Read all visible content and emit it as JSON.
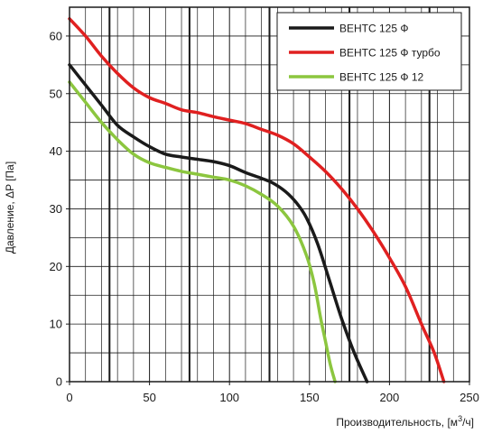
{
  "chart_data": {
    "type": "line",
    "title": "",
    "xlabel": "Производительность, [м 3/ч]",
    "xlabel_main": "Производительность, [м",
    "xlabel_sup": "3",
    "xlabel_end": "/ч]",
    "ylabel": "Давление, ΔP [Па]",
    "xlim": [
      0,
      250
    ],
    "ylim": [
      0,
      65
    ],
    "x_ticks": [
      0,
      50,
      100,
      150,
      200,
      250
    ],
    "y_ticks": [
      0,
      10,
      20,
      30,
      40,
      50,
      60
    ],
    "grid": true,
    "legend_position": "top-right",
    "series": [
      {
        "name": "ВЕНТС 125 Ф",
        "color": "#1a1a1a",
        "x": [
          0,
          10,
          20,
          30,
          40,
          50,
          60,
          70,
          80,
          90,
          100,
          110,
          120,
          127,
          135,
          142,
          148,
          155,
          162,
          170,
          178,
          186
        ],
        "y": [
          55,
          51.5,
          48,
          44.5,
          42.5,
          40.8,
          39.5,
          39,
          38.6,
          38.2,
          37.5,
          36.3,
          35.3,
          34.5,
          33,
          31,
          28.5,
          24,
          18,
          11,
          5,
          0
        ]
      },
      {
        "name": "ВЕНТС 125 Ф турбо",
        "color": "#e02020",
        "x": [
          0,
          10,
          20,
          30,
          40,
          50,
          60,
          70,
          80,
          90,
          100,
          110,
          120,
          130,
          140,
          150,
          160,
          170,
          180,
          190,
          200,
          210,
          220,
          228,
          234
        ],
        "y": [
          63,
          60,
          56.5,
          53.5,
          51,
          49.3,
          48.3,
          47.2,
          46.7,
          46,
          45.4,
          44.8,
          43.8,
          42.8,
          41.3,
          39,
          36.5,
          33.5,
          30,
          26,
          21.5,
          16.5,
          10,
          5,
          0
        ]
      },
      {
        "name": "ВЕНТС 125 Ф 12",
        "color": "#8cc63f",
        "x": [
          0,
          10,
          20,
          30,
          40,
          50,
          60,
          70,
          80,
          90,
          100,
          110,
          120,
          130,
          140,
          148,
          153,
          157,
          160,
          163,
          166
        ],
        "y": [
          52,
          48.5,
          45,
          42,
          39.5,
          38,
          37.2,
          36.5,
          36,
          35.5,
          35,
          34,
          32.5,
          30.5,
          27,
          22,
          17,
          11,
          7,
          3,
          0
        ]
      }
    ]
  }
}
